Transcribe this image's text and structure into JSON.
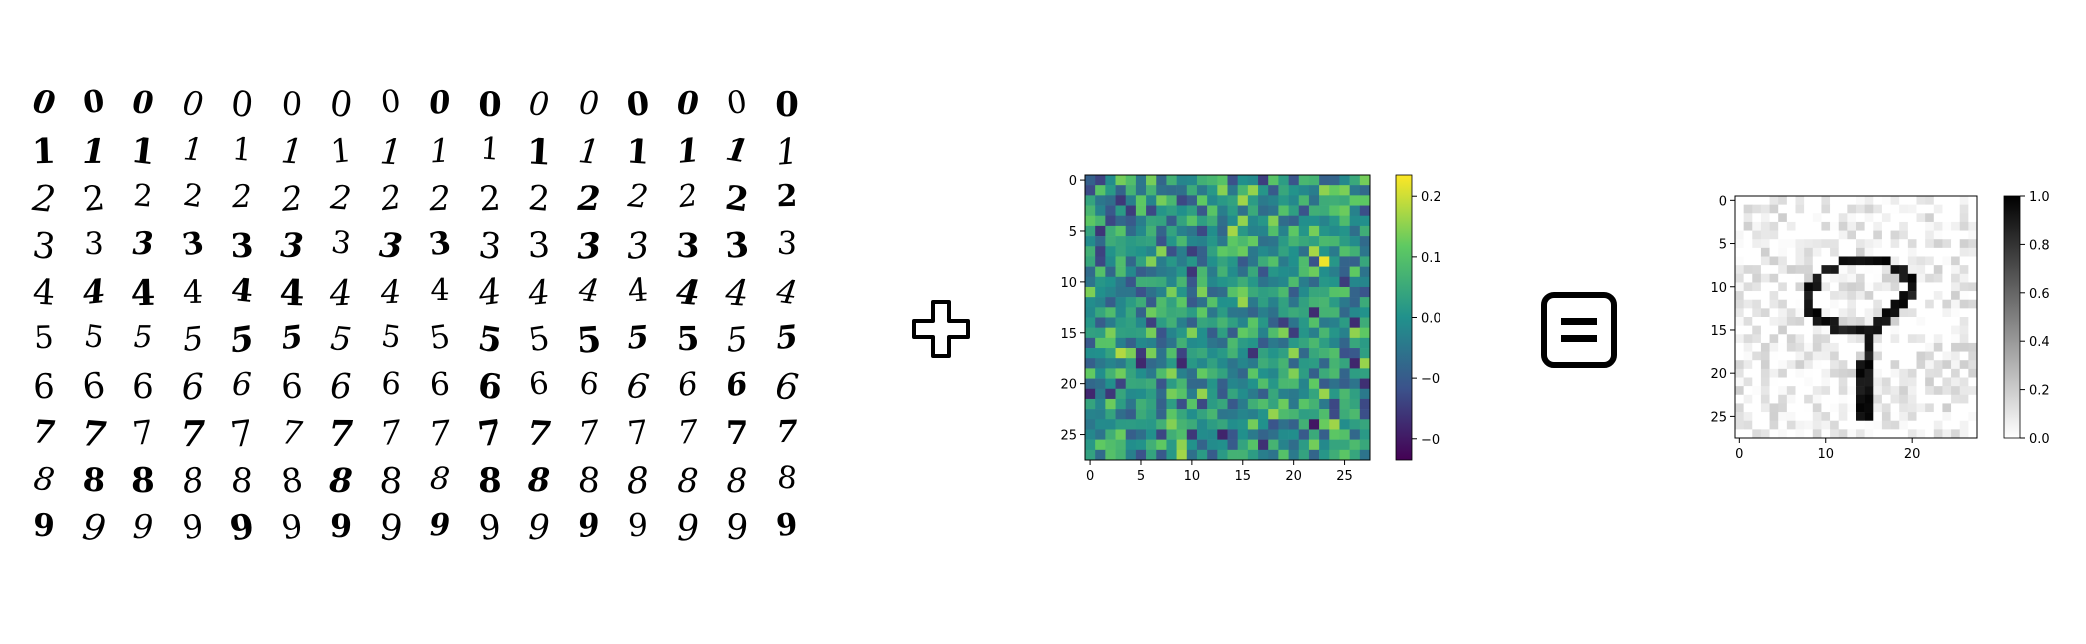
{
  "digit_grid": {
    "rows": [
      "0",
      "1",
      "2",
      "3",
      "4",
      "5",
      "6",
      "7",
      "8",
      "9"
    ],
    "columns": 16
  },
  "operators": {
    "plus": "plus-icon",
    "equals": "equals-icon"
  },
  "noise_panel": {
    "colormap": "viridis",
    "x_ticks": [
      "0",
      "5",
      "10",
      "15",
      "20",
      "25"
    ],
    "y_ticks": [
      "0",
      "5",
      "10",
      "15",
      "20",
      "25"
    ],
    "colorbar_ticks": [
      "0.2",
      "0.1",
      "0.0",
      "−0.1",
      "−0.2"
    ]
  },
  "result_panel": {
    "colormap": "gray_r",
    "digit": "9",
    "x_ticks": [
      "0",
      "10",
      "20"
    ],
    "y_ticks": [
      "0",
      "5",
      "10",
      "15",
      "20",
      "25"
    ],
    "colorbar_ticks": [
      "1.0",
      "0.8",
      "0.6",
      "0.4",
      "0.2",
      "0.0"
    ]
  }
}
